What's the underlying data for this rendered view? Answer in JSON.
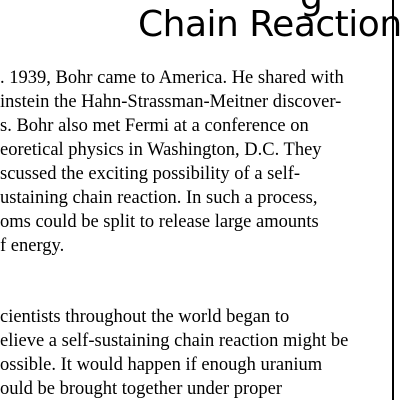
{
  "heading_fragment": "g",
  "heading": "Chain Reaction",
  "paragraphs": [
    {
      "lines": [
        ". 1939, Bohr came to America. He shared with",
        "instein the Hahn-Strassman-Meitner discover-",
        "s.  Bohr also met Fermi at a conference on",
        "eoretical physics in Washington, D.C. They",
        "scussed the exciting possibility of a self-",
        "ustaining chain reaction. In such a process,",
        "oms could be split to release large amounts",
        "f energy."
      ]
    },
    {
      "lines": [
        "cientists throughout the world began to",
        "elieve a self-sustaining chain reaction might be",
        "ossible. It would happen if enough uranium",
        "ould be brought together under proper"
      ]
    }
  ]
}
